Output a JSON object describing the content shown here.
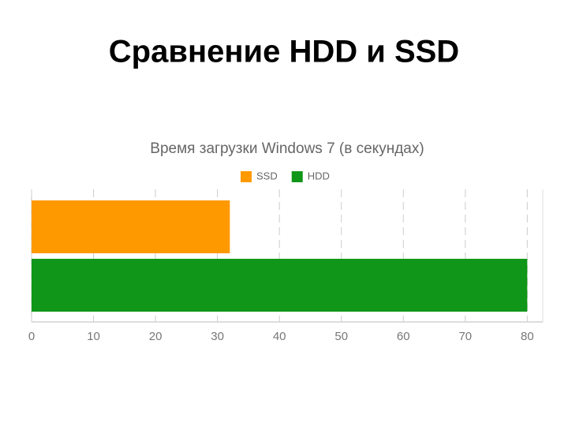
{
  "slide_title": "Сравнение HDD и SSD",
  "chart_data": {
    "type": "bar",
    "orientation": "horizontal",
    "title": "Время загрузки Windows 7 (в секундах)",
    "categories": [
      null
    ],
    "series": [
      {
        "name": "SSD",
        "color": "#ff9900",
        "values": [
          32
        ]
      },
      {
        "name": "HDD",
        "color": "#109618",
        "values": [
          80
        ]
      }
    ],
    "xlim": [
      0,
      82.5
    ],
    "xticks": [
      0,
      10,
      20,
      30,
      40,
      50,
      60,
      70,
      80
    ],
    "grid": true,
    "legend": "top"
  }
}
